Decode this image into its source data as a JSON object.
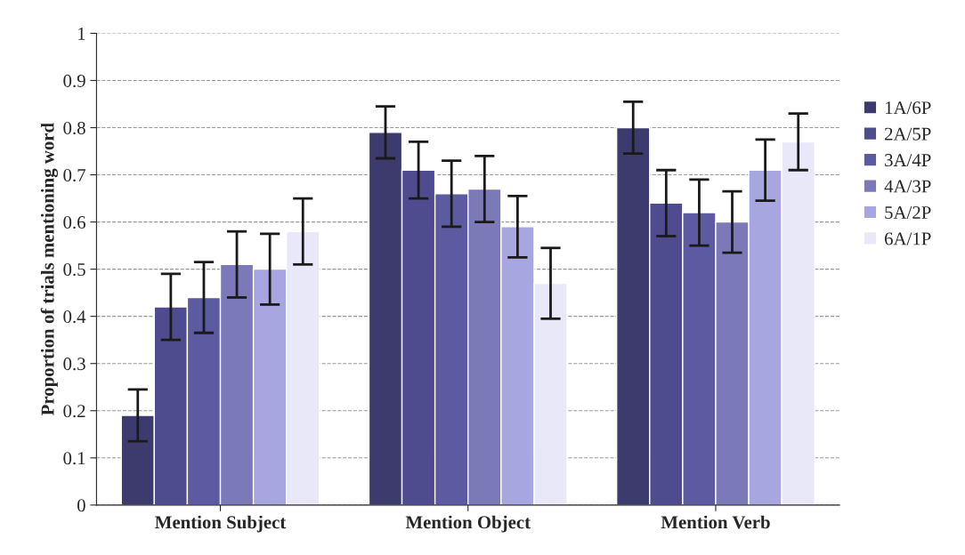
{
  "chart_data": {
    "type": "bar",
    "ylabel": "Proportion of trials mentioning word",
    "categories": [
      "Mention Subject",
      "Mention Object",
      "Mention Verb"
    ],
    "series": [
      {
        "name": "1A/6P",
        "color": "#3d3b6e",
        "values": [
          0.19,
          0.79,
          0.8
        ],
        "errors": [
          0.055,
          0.055,
          0.055
        ]
      },
      {
        "name": "2A/5P",
        "color": "#4e4c8e",
        "values": [
          0.42,
          0.71,
          0.64
        ],
        "errors": [
          0.07,
          0.06,
          0.07
        ]
      },
      {
        "name": "3A/4P",
        "color": "#5c5aa0",
        "values": [
          0.44,
          0.66,
          0.62
        ],
        "errors": [
          0.075,
          0.07,
          0.07
        ]
      },
      {
        "name": "4A/3P",
        "color": "#7b79b8",
        "values": [
          0.51,
          0.67,
          0.6
        ],
        "errors": [
          0.07,
          0.07,
          0.065
        ]
      },
      {
        "name": "5A/2P",
        "color": "#a8a6e0",
        "values": [
          0.5,
          0.59,
          0.71
        ],
        "errors": [
          0.075,
          0.065,
          0.065
        ]
      },
      {
        "name": "6A/1P",
        "color": "#e8e8f8",
        "values": [
          0.58,
          0.47,
          0.77
        ],
        "errors": [
          0.07,
          0.075,
          0.06
        ]
      }
    ],
    "ylim": [
      0,
      1
    ],
    "yticks": [
      0,
      0.1,
      0.2,
      0.3,
      0.4,
      0.5,
      0.6,
      0.7,
      0.8,
      0.9,
      1
    ],
    "grid": "y",
    "legend": "right"
  }
}
